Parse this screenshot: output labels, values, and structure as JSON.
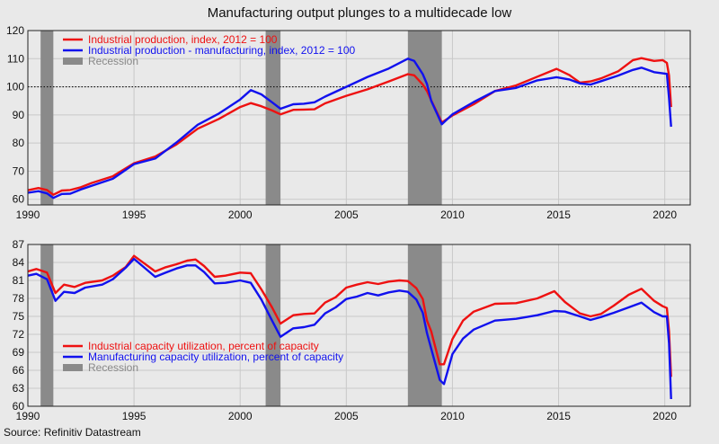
{
  "title": "Manufacturing output plunges to a multidecade low",
  "source": "Source: Refinitiv Datastream",
  "colors": {
    "red": "#ee1111",
    "blue": "#1111ee",
    "recession": "#8a8a8a",
    "grid": "#c9c9c9",
    "background": "#e9e9e9"
  },
  "chart_data": [
    {
      "type": "line",
      "xlim": [
        1990,
        2021.2
      ],
      "ylim": [
        58,
        120
      ],
      "yticks": [
        60,
        70,
        80,
        90,
        100,
        110,
        120
      ],
      "xticks": [
        1990,
        1995,
        2000,
        2005,
        2010,
        2015,
        2020
      ],
      "grid": true,
      "legend_position": "top-left",
      "reference_line": {
        "y": 100,
        "style": "dotted"
      },
      "recessions": [
        [
          1990.6,
          1991.2
        ],
        [
          2001.2,
          2001.9
        ],
        [
          2007.9,
          2009.5
        ]
      ],
      "recession_label": "Recession",
      "series": [
        {
          "name": "Industrial production, index, 2012 = 100",
          "color": "red",
          "points": [
            [
              1990,
              63.2
            ],
            [
              1990.5,
              64
            ],
            [
              1990.9,
              63.3
            ],
            [
              1991.2,
              61.6
            ],
            [
              1991.6,
              63.1
            ],
            [
              1992,
              63.3
            ],
            [
              1992.5,
              64.3
            ],
            [
              1993,
              65.8
            ],
            [
              1994,
              68.2
            ],
            [
              1995,
              72.8
            ],
            [
              1996,
              75.2
            ],
            [
              1997,
              79.5
            ],
            [
              1998,
              85.1
            ],
            [
              1999,
              88.6
            ],
            [
              2000,
              92.8
            ],
            [
              2000.5,
              94.2
            ],
            [
              2001,
              93.1
            ],
            [
              2001.5,
              91.6
            ],
            [
              2001.9,
              90.2
            ],
            [
              2002.5,
              91.8
            ],
            [
              2003,
              91.9
            ],
            [
              2003.5,
              92
            ],
            [
              2004,
              94.1
            ],
            [
              2005,
              96.8
            ],
            [
              2006,
              99.1
            ],
            [
              2007,
              101.9
            ],
            [
              2007.9,
              104.5
            ],
            [
              2008.2,
              104.1
            ],
            [
              2008.6,
              100.8
            ],
            [
              2008.8,
              98.5
            ],
            [
              2009,
              95.2
            ],
            [
              2009.5,
              87.3
            ],
            [
              2010,
              89.8
            ],
            [
              2011,
              93.8
            ],
            [
              2012,
              98.5
            ],
            [
              2013,
              100.5
            ],
            [
              2014,
              103.6
            ],
            [
              2014.9,
              106.4
            ],
            [
              2015.5,
              104.2
            ],
            [
              2016,
              101.5
            ],
            [
              2016.5,
              101.9
            ],
            [
              2017,
              103
            ],
            [
              2017.8,
              105.5
            ],
            [
              2018.5,
              109.5
            ],
            [
              2018.9,
              110.2
            ],
            [
              2019.5,
              109.2
            ],
            [
              2019.9,
              109.5
            ],
            [
              2020.1,
              108.5
            ],
            [
              2020.2,
              104
            ],
            [
              2020.3,
              92.8
            ]
          ]
        },
        {
          "name": "Industrial production - manufacturing, index, 2012 = 100",
          "color": "blue",
          "points": [
            [
              1990,
              62.3
            ],
            [
              1990.5,
              62.9
            ],
            [
              1990.9,
              62.1
            ],
            [
              1991.2,
              60.5
            ],
            [
              1991.6,
              61.9
            ],
            [
              1992,
              62
            ],
            [
              1992.5,
              63.5
            ],
            [
              1993,
              64.8
            ],
            [
              1994,
              67.3
            ],
            [
              1995,
              72.5
            ],
            [
              1996,
              74.5
            ],
            [
              1997,
              80.2
            ],
            [
              1998,
              86.5
            ],
            [
              1999,
              90.5
            ],
            [
              2000,
              95.5
            ],
            [
              2000.5,
              98.8
            ],
            [
              2001,
              97.3
            ],
            [
              2001.5,
              94.5
            ],
            [
              2001.9,
              92.2
            ],
            [
              2002.5,
              93.8
            ],
            [
              2003,
              94
            ],
            [
              2003.5,
              94.5
            ],
            [
              2004,
              96.5
            ],
            [
              2005,
              100
            ],
            [
              2006,
              103.5
            ],
            [
              2007,
              106.5
            ],
            [
              2007.9,
              110
            ],
            [
              2008.2,
              109.2
            ],
            [
              2008.6,
              104.5
            ],
            [
              2008.8,
              101
            ],
            [
              2009,
              95
            ],
            [
              2009.5,
              86.7
            ],
            [
              2010,
              90.2
            ],
            [
              2011,
              94.6
            ],
            [
              2012,
              98.5
            ],
            [
              2013,
              99.6
            ],
            [
              2014,
              102.3
            ],
            [
              2014.9,
              103.4
            ],
            [
              2015.5,
              102.6
            ],
            [
              2016,
              101.2
            ],
            [
              2016.5,
              100.8
            ],
            [
              2017,
              102
            ],
            [
              2017.8,
              104
            ],
            [
              2018.5,
              106
            ],
            [
              2018.9,
              106.8
            ],
            [
              2019.5,
              105.2
            ],
            [
              2019.9,
              104.8
            ],
            [
              2020.1,
              104.6
            ],
            [
              2020.2,
              96
            ],
            [
              2020.3,
              85.8
            ]
          ]
        }
      ]
    },
    {
      "type": "line",
      "xlim": [
        1990,
        2021.2
      ],
      "ylim": [
        60,
        87
      ],
      "yticks": [
        60,
        63,
        66,
        69,
        72,
        75,
        78,
        81,
        84,
        87
      ],
      "xticks": [
        1990,
        1995,
        2000,
        2005,
        2010,
        2015,
        2020
      ],
      "grid": true,
      "legend_position": "bottom-left",
      "recessions": [
        [
          1990.6,
          1991.2
        ],
        [
          2001.2,
          2001.9
        ],
        [
          2007.9,
          2009.5
        ]
      ],
      "recession_label": "Recession",
      "series": [
        {
          "name": "Industrial capacity utilization, percent of capacity",
          "color": "red",
          "points": [
            [
              1990,
              82.5
            ],
            [
              1990.4,
              82.9
            ],
            [
              1990.9,
              82.3
            ],
            [
              1991.3,
              78.9
            ],
            [
              1991.7,
              80.3
            ],
            [
              1992.2,
              79.9
            ],
            [
              1992.7,
              80.6
            ],
            [
              1993.5,
              81
            ],
            [
              1994,
              81.8
            ],
            [
              1994.6,
              83.2
            ],
            [
              1995,
              85.1
            ],
            [
              1995.5,
              83.8
            ],
            [
              1996,
              82.5
            ],
            [
              1996.5,
              83.2
            ],
            [
              1997,
              83.7
            ],
            [
              1997.5,
              84.3
            ],
            [
              1997.9,
              84.5
            ],
            [
              1998.3,
              83.4
            ],
            [
              1998.8,
              81.6
            ],
            [
              1999.3,
              81.8
            ],
            [
              2000,
              82.3
            ],
            [
              2000.5,
              82.2
            ],
            [
              2001,
              79.5
            ],
            [
              2001.5,
              76.5
            ],
            [
              2001.9,
              73.8
            ],
            [
              2002.5,
              75.2
            ],
            [
              2003,
              75.4
            ],
            [
              2003.5,
              75.5
            ],
            [
              2004,
              77.3
            ],
            [
              2004.5,
              78.2
            ],
            [
              2005,
              79.8
            ],
            [
              2005.5,
              80.3
            ],
            [
              2006,
              80.7
            ],
            [
              2006.5,
              80.4
            ],
            [
              2007,
              80.8
            ],
            [
              2007.5,
              81
            ],
            [
              2007.9,
              80.9
            ],
            [
              2008.3,
              79.7
            ],
            [
              2008.6,
              77.9
            ],
            [
              2008.8,
              74.3
            ],
            [
              2009,
              72.5
            ],
            [
              2009.4,
              67
            ],
            [
              2009.6,
              67
            ],
            [
              2010,
              71.2
            ],
            [
              2010.5,
              74.3
            ],
            [
              2011,
              75.8
            ],
            [
              2012,
              77.1
            ],
            [
              2013,
              77.2
            ],
            [
              2014,
              78
            ],
            [
              2014.8,
              79.2
            ],
            [
              2015.3,
              77.4
            ],
            [
              2016,
              75.5
            ],
            [
              2016.5,
              75
            ],
            [
              2017,
              75.4
            ],
            [
              2017.6,
              76.8
            ],
            [
              2018.3,
              78.6
            ],
            [
              2018.9,
              79.6
            ],
            [
              2019.5,
              77.6
            ],
            [
              2019.9,
              76.7
            ],
            [
              2020.1,
              76.4
            ],
            [
              2020.2,
              72.5
            ],
            [
              2020.3,
              64.9
            ]
          ]
        },
        {
          "name": "Manufacturing capacity utilization, percent of capacity",
          "color": "blue",
          "points": [
            [
              1990,
              81.8
            ],
            [
              1990.4,
              82.1
            ],
            [
              1990.9,
              81.2
            ],
            [
              1991.3,
              77.6
            ],
            [
              1991.7,
              79.1
            ],
            [
              1992.2,
              78.9
            ],
            [
              1992.7,
              79.8
            ],
            [
              1993.5,
              80.3
            ],
            [
              1994,
              81.2
            ],
            [
              1994.6,
              83.1
            ],
            [
              1995,
              84.6
            ],
            [
              1995.5,
              83.1
            ],
            [
              1996,
              81.6
            ],
            [
              1996.5,
              82.3
            ],
            [
              1997,
              83
            ],
            [
              1997.5,
              83.5
            ],
            [
              1997.9,
              83.5
            ],
            [
              1998.3,
              82.4
            ],
            [
              1998.8,
              80.5
            ],
            [
              1999.3,
              80.6
            ],
            [
              2000,
              81
            ],
            [
              2000.5,
              80.6
            ],
            [
              2001,
              77.8
            ],
            [
              2001.5,
              74.3
            ],
            [
              2001.9,
              71.6
            ],
            [
              2002.5,
              73
            ],
            [
              2003,
              73.2
            ],
            [
              2003.5,
              73.6
            ],
            [
              2004,
              75.5
            ],
            [
              2004.5,
              76.5
            ],
            [
              2005,
              77.9
            ],
            [
              2005.5,
              78.3
            ],
            [
              2006,
              78.9
            ],
            [
              2006.5,
              78.5
            ],
            [
              2007,
              79
            ],
            [
              2007.5,
              79.3
            ],
            [
              2007.9,
              79.1
            ],
            [
              2008.3,
              77.8
            ],
            [
              2008.6,
              75.6
            ],
            [
              2008.8,
              72.2
            ],
            [
              2009,
              69.6
            ],
            [
              2009.4,
              64.4
            ],
            [
              2009.6,
              63.7
            ],
            [
              2010,
              68.7
            ],
            [
              2010.5,
              71.3
            ],
            [
              2011,
              72.8
            ],
            [
              2012,
              74.3
            ],
            [
              2013,
              74.6
            ],
            [
              2014,
              75.2
            ],
            [
              2014.8,
              75.9
            ],
            [
              2015.3,
              75.8
            ],
            [
              2016,
              75
            ],
            [
              2016.5,
              74.4
            ],
            [
              2017,
              74.9
            ],
            [
              2017.6,
              75.6
            ],
            [
              2018.3,
              76.5
            ],
            [
              2018.9,
              77.3
            ],
            [
              2019.5,
              75.7
            ],
            [
              2019.9,
              75
            ],
            [
              2020.1,
              75
            ],
            [
              2020.2,
              70.5
            ],
            [
              2020.3,
              61.2
            ]
          ]
        }
      ]
    }
  ]
}
